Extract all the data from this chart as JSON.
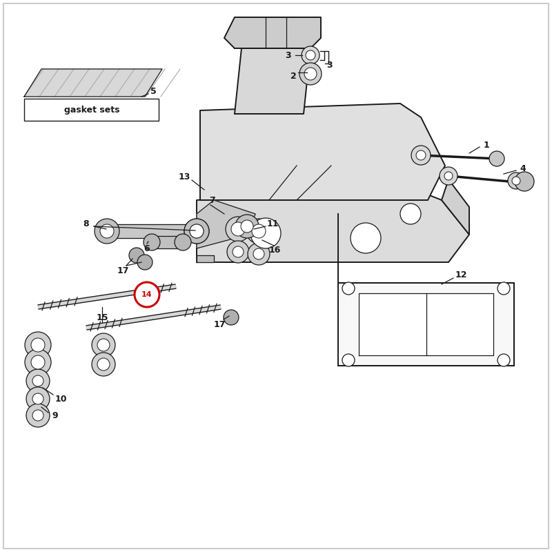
{
  "bg_color": "#ffffff",
  "border_color": "#dddddd",
  "lc": "#1a1a1a",
  "gray_fill": "#e0e0e0",
  "gray_mid": "#c8c8c8",
  "gray_dark": "#aaaaaa",
  "red_circle": "#cc0000",
  "label_fs": 9,
  "fig_w": 8.0,
  "fig_h": 8.0,
  "dpi": 100
}
